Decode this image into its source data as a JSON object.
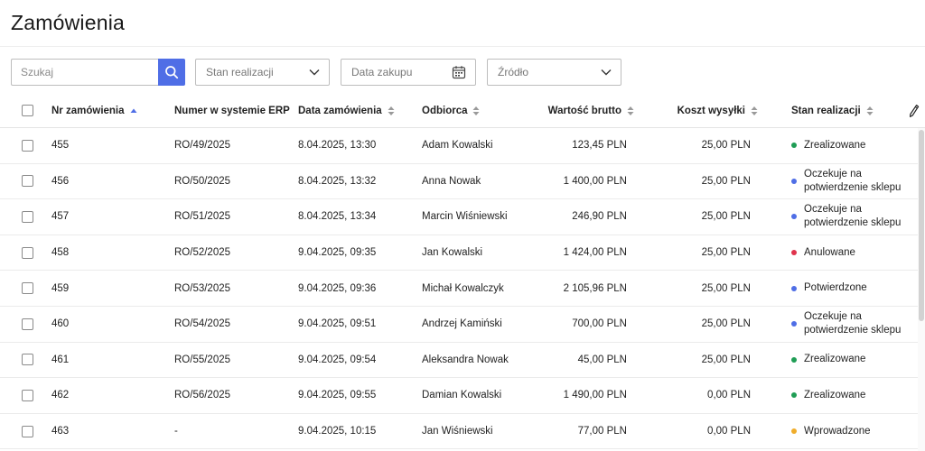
{
  "page": {
    "title": "Zamówienia"
  },
  "filters": {
    "search_placeholder": "Szukaj",
    "status_label": "Stan realizacji",
    "date_label": "Data zakupu",
    "source_label": "Źródło"
  },
  "columns": {
    "order_nr": "Nr zamówienia",
    "erp_nr": "Numer w systemie ERP",
    "order_date": "Data zamówienia",
    "recipient": "Odbiorca",
    "gross_value": "Wartość brutto",
    "shipping_cost": "Koszt wysyłki",
    "status": "Stan realizacji"
  },
  "status_colors": {
    "completed": "#1f9d55",
    "awaiting": "#4f6ee6",
    "cancelled": "#e0334c",
    "confirmed": "#4f6ee6",
    "introduced": "#f0ad2b"
  },
  "orders": [
    {
      "nr": "455",
      "erp": "RO/49/2025",
      "date": "8.04.2025, 13:30",
      "recipient": "Adam Kowalski",
      "value": "123,45 PLN",
      "shipping": "25,00 PLN",
      "status": "Zrealizowane",
      "status_key": "completed",
      "status_color": "#1f9d55"
    },
    {
      "nr": "456",
      "erp": "RO/50/2025",
      "date": "8.04.2025, 13:32",
      "recipient": "Anna Nowak",
      "value": "1 400,00 PLN",
      "shipping": "25,00 PLN",
      "status": "Oczekuje na potwierdzenie sklepu",
      "status_key": "awaiting",
      "status_color": "#4f6ee6"
    },
    {
      "nr": "457",
      "erp": "RO/51/2025",
      "date": "8.04.2025, 13:34",
      "recipient": "Marcin Wiśniewski",
      "value": "246,90 PLN",
      "shipping": "25,00 PLN",
      "status": "Oczekuje na potwierdzenie sklepu",
      "status_key": "awaiting",
      "status_color": "#4f6ee6"
    },
    {
      "nr": "458",
      "erp": "RO/52/2025",
      "date": "9.04.2025, 09:35",
      "recipient": "Jan Kowalski",
      "value": "1 424,00 PLN",
      "shipping": "25,00 PLN",
      "status": "Anulowane",
      "status_key": "cancelled",
      "status_color": "#e0334c"
    },
    {
      "nr": "459",
      "erp": "RO/53/2025",
      "date": "9.04.2025, 09:36",
      "recipient": "Michał Kowalczyk",
      "value": "2 105,96 PLN",
      "shipping": "25,00 PLN",
      "status": "Potwierdzone",
      "status_key": "confirmed",
      "status_color": "#4f6ee6"
    },
    {
      "nr": "460",
      "erp": "RO/54/2025",
      "date": "9.04.2025, 09:51",
      "recipient": "Andrzej Kamiński",
      "value": "700,00 PLN",
      "shipping": "25,00 PLN",
      "status": "Oczekuje na potwierdzenie sklepu",
      "status_key": "awaiting",
      "status_color": "#4f6ee6"
    },
    {
      "nr": "461",
      "erp": "RO/55/2025",
      "date": "9.04.2025, 09:54",
      "recipient": "Aleksandra Nowak",
      "value": "45,00 PLN",
      "shipping": "25,00 PLN",
      "status": "Zrealizowane",
      "status_key": "completed",
      "status_color": "#1f9d55"
    },
    {
      "nr": "462",
      "erp": "RO/56/2025",
      "date": "9.04.2025, 09:55",
      "recipient": "Damian Kowalski",
      "value": "1 490,00 PLN",
      "shipping": "0,00 PLN",
      "status": "Zrealizowane",
      "status_key": "completed",
      "status_color": "#1f9d55"
    },
    {
      "nr": "463",
      "erp": "-",
      "date": "9.04.2025, 10:15",
      "recipient": "Jan Wiśniewski",
      "value": "77,00 PLN",
      "shipping": "0,00 PLN",
      "status": "Wprowadzone",
      "status_key": "introduced",
      "status_color": "#f0ad2b"
    }
  ],
  "sort": {
    "column": "order_nr",
    "direction": "asc"
  },
  "icons": {
    "search": "search-icon",
    "chevron": "chevron-down-icon",
    "calendar": "calendar-icon",
    "edit_columns": "pencil-icon"
  },
  "accent_color": "#4f6ee6"
}
